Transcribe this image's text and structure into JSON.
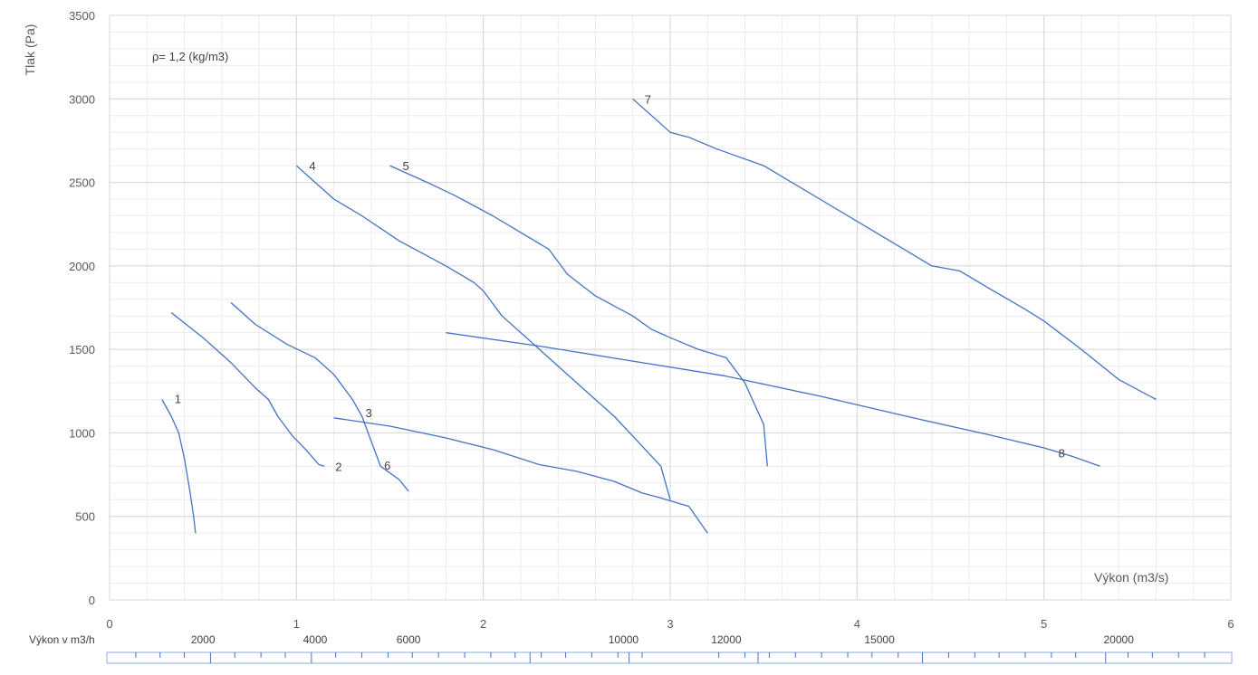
{
  "chart_data": {
    "type": "line",
    "title": "",
    "xlabel": "Výkon (m3/s)",
    "ylabel": "Tlak (Pa)",
    "xlim": [
      0,
      6
    ],
    "ylim": [
      0,
      3500
    ],
    "x_ticks": [
      0,
      1,
      2,
      3,
      4,
      5,
      6
    ],
    "y_ticks": [
      0,
      500,
      1000,
      1500,
      2000,
      2500,
      3000,
      3500
    ],
    "grid": true,
    "annotation": "ρ= 1,2 (kg/m3)",
    "series_color": "#4472C4",
    "series": [
      {
        "name": "1",
        "points": [
          [
            0.28,
            1200
          ],
          [
            0.33,
            1100
          ],
          [
            0.37,
            1000
          ],
          [
            0.4,
            850
          ],
          [
            0.43,
            650
          ],
          [
            0.45,
            500
          ],
          [
            0.46,
            400
          ]
        ]
      },
      {
        "name": "2",
        "points": [
          [
            0.33,
            1720
          ],
          [
            0.5,
            1570
          ],
          [
            0.65,
            1420
          ],
          [
            0.78,
            1270
          ],
          [
            0.85,
            1200
          ],
          [
            0.9,
            1100
          ],
          [
            0.98,
            980
          ],
          [
            1.05,
            900
          ],
          [
            1.12,
            810
          ],
          [
            1.15,
            800
          ]
        ]
      },
      {
        "name": "3",
        "points": [
          [
            1.2,
            1090
          ],
          [
            1.5,
            1040
          ],
          [
            1.8,
            970
          ],
          [
            2.05,
            900
          ],
          [
            2.3,
            810
          ],
          [
            2.5,
            770
          ],
          [
            2.7,
            710
          ],
          [
            2.85,
            640
          ],
          [
            2.95,
            610
          ],
          [
            3.1,
            560
          ],
          [
            3.2,
            400
          ]
        ]
      },
      {
        "name": "4",
        "points": [
          [
            1.0,
            2600
          ],
          [
            1.1,
            2500
          ],
          [
            1.2,
            2400
          ],
          [
            1.35,
            2300
          ],
          [
            1.55,
            2150
          ],
          [
            1.8,
            2000
          ],
          [
            1.95,
            1900
          ],
          [
            2.0,
            1850
          ],
          [
            2.1,
            1700
          ],
          [
            2.3,
            1500
          ],
          [
            2.5,
            1300
          ],
          [
            2.7,
            1100
          ],
          [
            2.85,
            920
          ],
          [
            2.95,
            800
          ],
          [
            3.0,
            600
          ]
        ]
      },
      {
        "name": "5",
        "points": [
          [
            1.5,
            2600
          ],
          [
            1.7,
            2500
          ],
          [
            1.85,
            2420
          ],
          [
            2.05,
            2300
          ],
          [
            2.2,
            2200
          ],
          [
            2.35,
            2100
          ],
          [
            2.45,
            1950
          ],
          [
            2.6,
            1820
          ],
          [
            2.8,
            1700
          ],
          [
            2.9,
            1620
          ],
          [
            3.0,
            1570
          ],
          [
            3.15,
            1500
          ],
          [
            3.3,
            1450
          ],
          [
            3.4,
            1300
          ],
          [
            3.5,
            1050
          ],
          [
            3.52,
            800
          ]
        ]
      },
      {
        "name": "6",
        "points": [
          [
            0.65,
            1780
          ],
          [
            0.78,
            1650
          ],
          [
            0.95,
            1530
          ],
          [
            1.1,
            1450
          ],
          [
            1.2,
            1350
          ],
          [
            1.3,
            1200
          ],
          [
            1.35,
            1100
          ],
          [
            1.4,
            950
          ],
          [
            1.45,
            800
          ],
          [
            1.55,
            720
          ],
          [
            1.6,
            650
          ]
        ]
      },
      {
        "name": "7",
        "points": [
          [
            2.8,
            3000
          ],
          [
            2.9,
            2900
          ],
          [
            3.0,
            2800
          ],
          [
            3.1,
            2770
          ],
          [
            3.25,
            2700
          ],
          [
            3.5,
            2600
          ],
          [
            3.8,
            2400
          ],
          [
            4.1,
            2200
          ],
          [
            4.4,
            2000
          ],
          [
            4.55,
            1970
          ],
          [
            4.7,
            1870
          ],
          [
            4.9,
            1740
          ],
          [
            5.0,
            1670
          ],
          [
            5.2,
            1500
          ],
          [
            5.4,
            1320
          ],
          [
            5.6,
            1200
          ]
        ]
      },
      {
        "name": "8",
        "points": [
          [
            1.8,
            1600
          ],
          [
            2.3,
            1520
          ],
          [
            2.8,
            1430
          ],
          [
            3.3,
            1340
          ],
          [
            3.8,
            1220
          ],
          [
            4.3,
            1090
          ],
          [
            4.7,
            990
          ],
          [
            5.0,
            910
          ],
          [
            5.15,
            860
          ],
          [
            5.3,
            800
          ]
        ]
      }
    ],
    "secondary_axis": {
      "label": "Výkon v m3/h",
      "labels": [
        {
          "text": "2000",
          "x": 0.5
        },
        {
          "text": "4000",
          "x": 1.1
        },
        {
          "text": "6000",
          "x": 1.6
        },
        {
          "text": "10000",
          "x": 2.75
        },
        {
          "text": "12000",
          "x": 3.3
        },
        {
          "text": "15000",
          "x": 4.12
        },
        {
          "text": "20000",
          "x": 5.4
        }
      ],
      "minor_ticks": [
        0.14,
        0.27,
        0.4,
        0.67,
        0.81,
        0.94,
        1.21,
        1.35,
        1.49,
        1.62,
        1.76,
        1.9,
        2.04,
        2.17,
        2.31,
        2.44,
        2.58,
        2.72,
        2.85,
        3.26,
        3.4,
        3.53,
        3.67,
        3.81,
        3.95,
        4.08,
        4.22,
        4.49,
        4.63,
        4.76,
        4.9,
        5.04,
        5.17,
        5.45,
        5.58,
        5.72,
        5.86
      ],
      "major_ticks": [
        0.54,
        1.08,
        2.25,
        2.78,
        3.47,
        4.35,
        5.33
      ]
    }
  }
}
